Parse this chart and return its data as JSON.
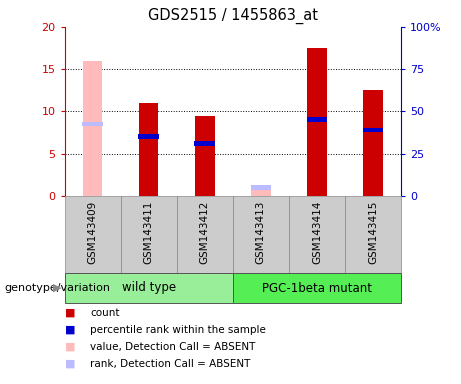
{
  "title": "GDS2515 / 1455863_at",
  "samples": [
    "GSM143409",
    "GSM143411",
    "GSM143412",
    "GSM143413",
    "GSM143414",
    "GSM143415"
  ],
  "count_values": [
    null,
    11.0,
    9.5,
    null,
    17.5,
    12.5
  ],
  "count_absent": [
    16.0,
    null,
    null,
    1.0,
    null,
    null
  ],
  "rank_values": [
    null,
    7.0,
    6.2,
    null,
    9.0,
    7.8
  ],
  "rank_absent": [
    8.5,
    null,
    null,
    1.0,
    null,
    null
  ],
  "left_ylim": [
    0,
    20
  ],
  "left_yticks": [
    0,
    5,
    10,
    15,
    20
  ],
  "right_ylim": [
    0,
    100
  ],
  "right_yticks": [
    0,
    25,
    50,
    75,
    100
  ],
  "right_yticklabels": [
    "0",
    "25",
    "50",
    "75",
    "100%"
  ],
  "wild_type_label": "wild type",
  "mutant_label": "PGC-1beta mutant",
  "group_label": "genotype/variation",
  "bar_width": 0.35,
  "colors": {
    "count_present": "#cc0000",
    "count_absent": "#ffbbbb",
    "rank_present": "#0000cc",
    "rank_absent": "#bbbbff",
    "wild_type_bg": "#99ee99",
    "mutant_bg": "#55ee55",
    "sample_bg": "#cccccc",
    "left_axis": "#cc0000",
    "right_axis": "#0000cc"
  },
  "legend_items": [
    {
      "label": "count",
      "color": "#cc0000"
    },
    {
      "label": "percentile rank within the sample",
      "color": "#0000cc"
    },
    {
      "label": "value, Detection Call = ABSENT",
      "color": "#ffbbbb"
    },
    {
      "label": "rank, Detection Call = ABSENT",
      "color": "#bbbbff"
    }
  ]
}
